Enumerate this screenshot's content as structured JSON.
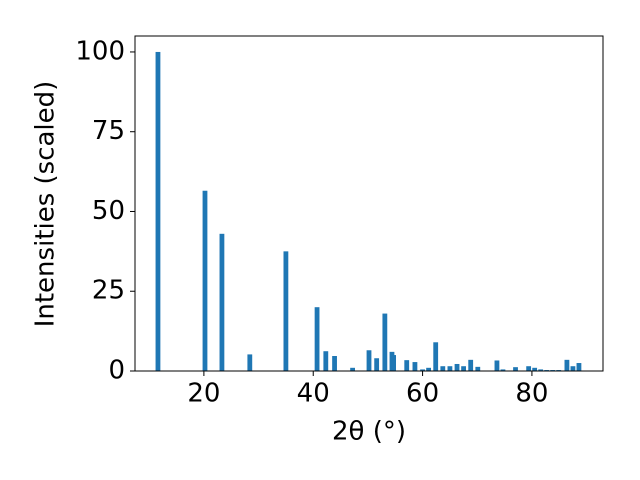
{
  "chart_data": {
    "type": "bar",
    "xlabel": "2θ (°)",
    "ylabel": "Intensities (scaled)",
    "color": "#1f77b4",
    "x": [
      11.6,
      20.2,
      23.3,
      28.4,
      35.0,
      40.7,
      42.3,
      43.9,
      47.2,
      50.2,
      51.6,
      53.1,
      54.4,
      54.7,
      57.1,
      58.6,
      60.0,
      61.1,
      62.4,
      63.7,
      65.0,
      66.3,
      67.5,
      68.8,
      70.1,
      73.6,
      74.7,
      77.0,
      79.4,
      80.5,
      81.6,
      82.7,
      83.8,
      84.9,
      86.4,
      87.5,
      88.6
    ],
    "values": [
      100,
      56.5,
      43,
      5.2,
      37.5,
      20,
      6.2,
      4.7,
      1.0,
      6.5,
      4,
      18,
      6,
      5,
      3.4,
      2.8,
      0.5,
      1,
      9,
      1.5,
      1.5,
      2.2,
      1.5,
      3.5,
      1.3,
      3.3,
      0.5,
      1.2,
      1.5,
      1,
      0.5,
      0.3,
      0.3,
      0.3,
      3.5,
      1.5,
      2.5
    ],
    "xlim": [
      7.4,
      93.0
    ],
    "ylim": [
      0,
      105
    ],
    "xticks": [
      20,
      40,
      60,
      80
    ],
    "yticks": [
      0,
      25,
      50,
      75,
      100
    ]
  }
}
